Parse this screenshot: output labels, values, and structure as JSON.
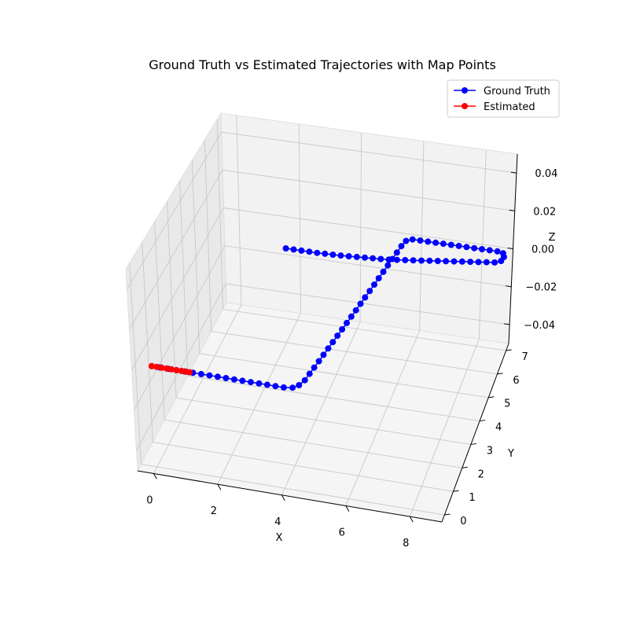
{
  "chart_data": {
    "type": "line3d",
    "title": "Ground Truth vs Estimated Trajectories with Map Points",
    "xlabel": "X",
    "ylabel": "Y",
    "zlabel": "Z",
    "xlim": [
      -0.5,
      9
    ],
    "ylim": [
      -0.3,
      7.3
    ],
    "zlim": [
      -0.05,
      0.05
    ],
    "x_ticks": [
      0,
      2,
      4,
      6,
      8
    ],
    "y_ticks": [
      0,
      1,
      2,
      3,
      4,
      5,
      6,
      7
    ],
    "z_ticks": [
      -0.04,
      -0.02,
      0.0,
      0.02,
      0.04
    ],
    "z_tick_labels": [
      "−0.04",
      "−0.02",
      "0.00",
      "0.02",
      "0.04"
    ],
    "grid": true,
    "legend_position": "top-right",
    "series": [
      {
        "name": "Ground Truth",
        "color": "#0000ff",
        "marker": "circle",
        "points": [
          [
            0.0,
            0.0,
            0
          ],
          [
            0.25,
            0.0,
            0
          ],
          [
            0.5,
            0.0,
            0
          ],
          [
            0.75,
            0.0,
            0
          ],
          [
            1.0,
            0.0,
            0
          ],
          [
            1.25,
            0.0,
            0
          ],
          [
            1.5,
            0.0,
            0
          ],
          [
            1.75,
            0.0,
            0
          ],
          [
            2.0,
            0.0,
            0
          ],
          [
            2.25,
            0.0,
            0
          ],
          [
            2.5,
            0.0,
            0
          ],
          [
            2.75,
            0.0,
            0
          ],
          [
            3.0,
            0.0,
            0
          ],
          [
            3.25,
            0.0,
            0
          ],
          [
            3.5,
            0.0,
            0
          ],
          [
            3.75,
            0.0,
            0
          ],
          [
            4.0,
            0.0,
            0
          ],
          [
            4.25,
            0.05,
            0
          ],
          [
            4.4,
            0.2,
            0
          ],
          [
            4.5,
            0.45,
            0
          ],
          [
            4.55,
            0.75,
            0
          ],
          [
            4.6,
            1.05,
            0
          ],
          [
            4.65,
            1.35,
            0
          ],
          [
            4.7,
            1.65,
            0
          ],
          [
            4.75,
            1.95,
            0
          ],
          [
            4.8,
            2.25,
            0
          ],
          [
            4.85,
            2.55,
            0
          ],
          [
            4.9,
            2.85,
            0
          ],
          [
            4.95,
            3.15,
            0
          ],
          [
            5.0,
            3.45,
            0
          ],
          [
            5.05,
            3.75,
            0
          ],
          [
            5.1,
            4.05,
            0
          ],
          [
            5.15,
            4.35,
            0
          ],
          [
            5.2,
            4.65,
            0
          ],
          [
            5.25,
            4.95,
            0
          ],
          [
            5.3,
            5.25,
            0
          ],
          [
            5.35,
            5.55,
            0
          ],
          [
            5.4,
            5.85,
            0
          ],
          [
            5.45,
            6.15,
            0
          ],
          [
            5.5,
            6.45,
            0
          ],
          [
            5.55,
            6.75,
            0
          ],
          [
            5.62,
            7.0,
            0
          ],
          [
            5.8,
            7.1,
            0
          ],
          [
            6.05,
            7.1,
            0
          ],
          [
            6.3,
            7.1,
            0
          ],
          [
            6.55,
            7.1,
            0
          ],
          [
            6.8,
            7.1,
            0
          ],
          [
            7.05,
            7.1,
            0
          ],
          [
            7.3,
            7.1,
            0
          ],
          [
            7.55,
            7.1,
            0
          ],
          [
            7.8,
            7.1,
            0
          ],
          [
            8.05,
            7.1,
            0
          ],
          [
            8.3,
            7.1,
            0
          ],
          [
            8.55,
            7.1,
            0
          ],
          [
            8.75,
            7.05,
            0
          ],
          [
            8.82,
            6.9,
            0
          ],
          [
            8.78,
            6.72,
            0
          ],
          [
            8.6,
            6.62,
            0
          ],
          [
            8.35,
            6.58,
            0
          ],
          [
            8.1,
            6.54,
            0
          ],
          [
            7.85,
            6.5,
            0
          ],
          [
            7.6,
            6.46,
            0
          ],
          [
            7.35,
            6.42,
            0
          ],
          [
            7.1,
            6.38,
            0
          ],
          [
            6.85,
            6.34,
            0
          ],
          [
            6.6,
            6.3,
            0
          ],
          [
            6.35,
            6.26,
            0
          ],
          [
            6.1,
            6.22,
            0
          ],
          [
            5.85,
            6.18,
            0
          ],
          [
            5.6,
            6.14,
            0
          ],
          [
            5.35,
            6.1,
            0
          ],
          [
            5.1,
            6.08,
            0
          ],
          [
            4.85,
            6.06,
            0
          ],
          [
            4.6,
            6.04,
            0
          ],
          [
            4.35,
            6.02,
            0
          ],
          [
            4.1,
            6.0,
            0
          ],
          [
            3.85,
            5.98,
            0
          ],
          [
            3.6,
            5.97,
            0
          ],
          [
            3.35,
            5.96,
            0
          ],
          [
            3.1,
            5.95,
            0
          ],
          [
            2.85,
            5.95,
            0
          ],
          [
            2.6,
            5.95,
            0
          ],
          [
            2.35,
            5.95,
            0
          ],
          [
            2.1,
            5.95,
            0
          ]
        ]
      },
      {
        "name": "Estimated",
        "color": "#ff0000",
        "marker": "circle",
        "points": [
          [
            0.0,
            0.0,
            0
          ],
          [
            0.15,
            0.0,
            0
          ],
          [
            0.3,
            0.0,
            0
          ],
          [
            0.45,
            0.0,
            0
          ],
          [
            0.6,
            0.0,
            0
          ],
          [
            0.75,
            0.0,
            0
          ],
          [
            0.9,
            0.0,
            0
          ],
          [
            1.05,
            0.0,
            0
          ],
          [
            1.15,
            0.0,
            0
          ]
        ]
      }
    ]
  }
}
